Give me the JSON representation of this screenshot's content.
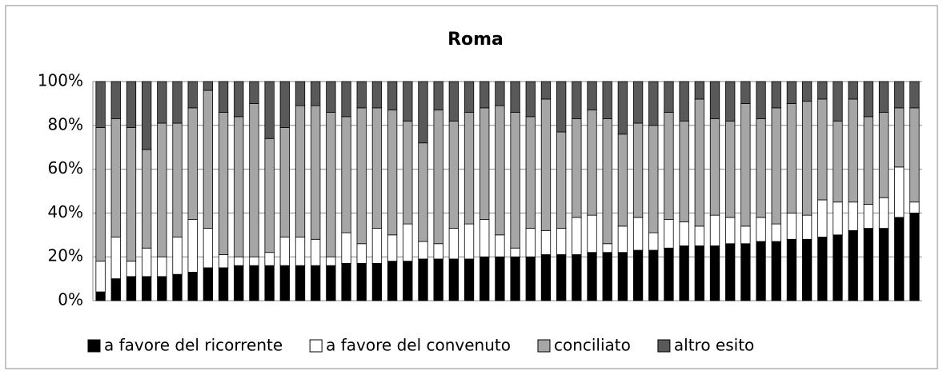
{
  "chart_data": {
    "type": "bar",
    "stacked": true,
    "title": "Roma",
    "categories": [
      null,
      null,
      null,
      null,
      null,
      null,
      null,
      null,
      null,
      null,
      null,
      null,
      null,
      null,
      null,
      null,
      null,
      null,
      null,
      null,
      null,
      null,
      null,
      null,
      null,
      null,
      null,
      null,
      null,
      null,
      null,
      null,
      null,
      null,
      null,
      null,
      null,
      null,
      null,
      null,
      null,
      null,
      null,
      null,
      null,
      null,
      null,
      null,
      null,
      null,
      null,
      null,
      null,
      null
    ],
    "series": [
      {
        "name": "a favore del ricorrente",
        "color": "#000000",
        "values": [
          4,
          10,
          11,
          11,
          11,
          12,
          13,
          15,
          15,
          16,
          16,
          16,
          16,
          16,
          16,
          16,
          17,
          17,
          17,
          18,
          18,
          19,
          19,
          19,
          19,
          20,
          20,
          20,
          20,
          21,
          21,
          21,
          22,
          22,
          22,
          23,
          23,
          24,
          25,
          25,
          25,
          26,
          26,
          27,
          27,
          28,
          28,
          29,
          30,
          32,
          33,
          33,
          38,
          40
        ]
      },
      {
        "name": "a favore del convenuto",
        "color": "#ffffff",
        "values": [
          14,
          19,
          7,
          13,
          9,
          17,
          24,
          18,
          6,
          4,
          4,
          6,
          13,
          13,
          12,
          4,
          14,
          9,
          16,
          12,
          17,
          8,
          7,
          14,
          16,
          17,
          10,
          4,
          13,
          11,
          12,
          17,
          17,
          4,
          12,
          15,
          8,
          13,
          11,
          9,
          14,
          12,
          8,
          11,
          8,
          12,
          11,
          17,
          15,
          13,
          11,
          14,
          23,
          5
        ]
      },
      {
        "name": "conciliato",
        "color": "#a6a6a6",
        "values": [
          61,
          54,
          61,
          45,
          61,
          52,
          51,
          63,
          65,
          64,
          70,
          52,
          50,
          60,
          61,
          66,
          53,
          62,
          55,
          57,
          47,
          45,
          61,
          49,
          51,
          51,
          59,
          62,
          51,
          60,
          44,
          45,
          48,
          57,
          42,
          43,
          49,
          49,
          46,
          58,
          44,
          44,
          56,
          45,
          53,
          50,
          52,
          46,
          37,
          47,
          40,
          39,
          27,
          43
        ]
      },
      {
        "name": "altro esito",
        "color": "#595959",
        "values": [
          21,
          17,
          21,
          31,
          19,
          19,
          12,
          4,
          14,
          16,
          10,
          26,
          21,
          11,
          11,
          14,
          16,
          12,
          12,
          13,
          18,
          28,
          13,
          18,
          14,
          12,
          11,
          14,
          16,
          8,
          23,
          17,
          13,
          17,
          24,
          19,
          20,
          14,
          18,
          8,
          17,
          18,
          10,
          17,
          12,
          10,
          9,
          8,
          18,
          8,
          16,
          14,
          12,
          12
        ]
      }
    ],
    "ylim": [
      0,
      100
    ],
    "yticks": [
      {
        "value": 0,
        "label": "0%"
      },
      {
        "value": 20,
        "label": "20%"
      },
      {
        "value": 40,
        "label": "40%"
      },
      {
        "value": 60,
        "label": "60%"
      },
      {
        "value": 80,
        "label": "80%"
      },
      {
        "value": 100,
        "label": "100%"
      }
    ],
    "grid": true,
    "legend": "bottom"
  }
}
